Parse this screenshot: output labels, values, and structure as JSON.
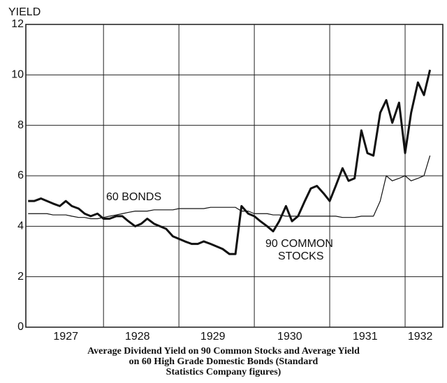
{
  "chart_data": {
    "type": "line",
    "y_axis_label": "YIELD",
    "caption": [
      "Average Dividend Yield on 90 Common Stocks and Average Yield",
      "on 60 High Grade Domestic Bonds (Standard",
      "Statistics Company figures)"
    ],
    "annotations": [
      "60 BONDS",
      "90 COMMON",
      "STOCKS"
    ],
    "xlim": [
      1926.97,
      1932.5
    ],
    "xgrid": [
      1928,
      1929,
      1930,
      1931,
      1932
    ],
    "xticks": [
      {
        "value": 1927.5,
        "label": "1927"
      },
      {
        "value": 1928.45,
        "label": "1928"
      },
      {
        "value": 1929.45,
        "label": "1929"
      },
      {
        "value": 1930.47,
        "label": "1930"
      },
      {
        "value": 1931.47,
        "label": "1931"
      },
      {
        "value": 1932.2,
        "label": "1932"
      }
    ],
    "ylim": [
      0,
      12
    ],
    "yticks": [
      0,
      2,
      4,
      6,
      8,
      10,
      12
    ],
    "grid": true,
    "x": [
      1927.0,
      1927.08,
      1927.17,
      1927.25,
      1927.33,
      1927.42,
      1927.5,
      1927.58,
      1927.67,
      1927.75,
      1927.83,
      1927.92,
      1928.0,
      1928.08,
      1928.17,
      1928.25,
      1928.33,
      1928.42,
      1928.5,
      1928.58,
      1928.67,
      1928.75,
      1928.83,
      1928.92,
      1929.0,
      1929.08,
      1929.17,
      1929.25,
      1929.33,
      1929.42,
      1929.5,
      1929.58,
      1929.67,
      1929.75,
      1929.83,
      1929.92,
      1930.0,
      1930.08,
      1930.17,
      1930.25,
      1930.33,
      1930.42,
      1930.5,
      1930.58,
      1930.67,
      1930.75,
      1930.83,
      1930.92,
      1931.0,
      1931.08,
      1931.17,
      1931.25,
      1931.33,
      1931.42,
      1931.5,
      1931.58,
      1931.67,
      1931.75,
      1931.83,
      1931.92,
      1932.0,
      1932.08,
      1932.17,
      1932.25,
      1932.33
    ],
    "series": [
      {
        "name": "90 COMMON STOCKS",
        "color": "#111111",
        "width": 3,
        "values": [
          5.0,
          5.0,
          5.1,
          5.0,
          4.9,
          4.8,
          5.0,
          4.8,
          4.7,
          4.5,
          4.4,
          4.5,
          4.3,
          4.3,
          4.4,
          4.4,
          4.2,
          4.0,
          4.1,
          4.3,
          4.1,
          4.0,
          3.9,
          3.6,
          3.5,
          3.4,
          3.3,
          3.3,
          3.4,
          3.3,
          3.2,
          3.1,
          2.9,
          2.9,
          4.8,
          4.5,
          4.4,
          4.2,
          4.0,
          3.8,
          4.2,
          4.8,
          4.2,
          4.4,
          5.0,
          5.5,
          5.6,
          5.3,
          5.0,
          5.6,
          6.3,
          5.8,
          5.9,
          7.8,
          6.9,
          6.8,
          8.5,
          9.0,
          8.1,
          8.9,
          6.9,
          8.5,
          9.7,
          9.2,
          10.2
        ]
      },
      {
        "name": "60 BONDS",
        "color": "#111111",
        "width": 1.2,
        "values": [
          4.5,
          4.5,
          4.5,
          4.5,
          4.45,
          4.45,
          4.45,
          4.4,
          4.35,
          4.35,
          4.3,
          4.3,
          4.35,
          4.4,
          4.45,
          4.5,
          4.55,
          4.6,
          4.6,
          4.6,
          4.65,
          4.65,
          4.65,
          4.65,
          4.7,
          4.7,
          4.7,
          4.7,
          4.7,
          4.75,
          4.75,
          4.75,
          4.75,
          4.75,
          4.6,
          4.6,
          4.5,
          4.5,
          4.5,
          4.45,
          4.45,
          4.4,
          4.4,
          4.4,
          4.4,
          4.4,
          4.4,
          4.4,
          4.4,
          4.4,
          4.35,
          4.35,
          4.35,
          4.4,
          4.4,
          4.4,
          5.0,
          6.0,
          5.8,
          5.9,
          6.0,
          5.8,
          5.9,
          6.0,
          6.8
        ]
      }
    ]
  }
}
